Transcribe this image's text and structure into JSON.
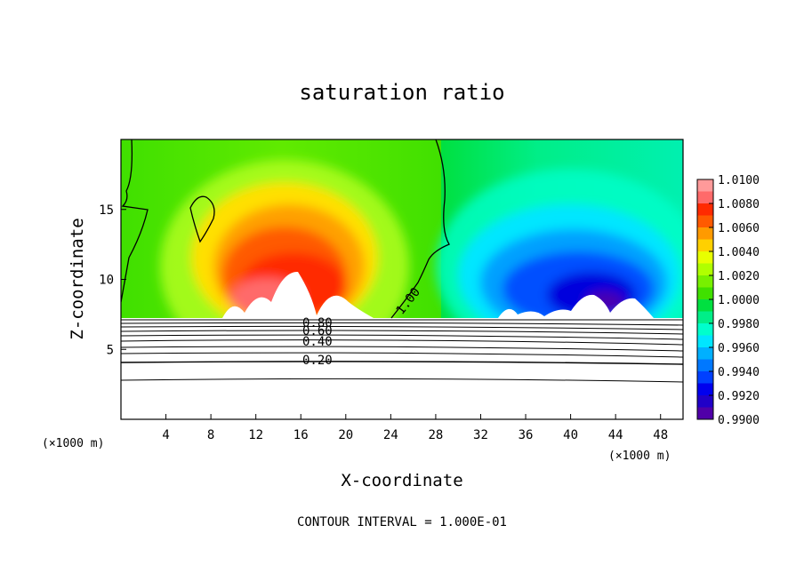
{
  "chart_data": {
    "type": "heatmap",
    "title": "saturation ratio",
    "xlabel": "X-coordinate",
    "ylabel": "Z-coordinate",
    "x_unit": "(×1000 m)",
    "xlim": [
      0,
      50
    ],
    "ylim": [
      0,
      20
    ],
    "x_ticks": [
      4,
      8,
      12,
      16,
      20,
      24,
      28,
      32,
      36,
      40,
      44,
      48
    ],
    "y_ticks": [
      5,
      10,
      15
    ],
    "colorbar": {
      "ticks": [
        "1.0100",
        "1.0080",
        "1.0060",
        "1.0040",
        "1.0020",
        "1.0000",
        "0.9980",
        "0.9960",
        "0.9940",
        "0.9920",
        "0.9900"
      ],
      "colors": [
        "#ff9a9a",
        "#ff6a6a",
        "#ff2a00",
        "#ff5a00",
        "#ff9a00",
        "#ffd000",
        "#e8ff00",
        "#b0ff00",
        "#78f000",
        "#40e000",
        "#00e040",
        "#00ee88",
        "#00ffcc",
        "#00e6ff",
        "#00b0ff",
        "#0078ff",
        "#0040ff",
        "#0000ee",
        "#2000c8",
        "#5000a8"
      ]
    },
    "contour_labels": [
      "1.00",
      "0.80",
      "0.60",
      "0.40",
      "0.20"
    ],
    "note": "CONTOUR INTERVAL = 1.000E-01"
  }
}
